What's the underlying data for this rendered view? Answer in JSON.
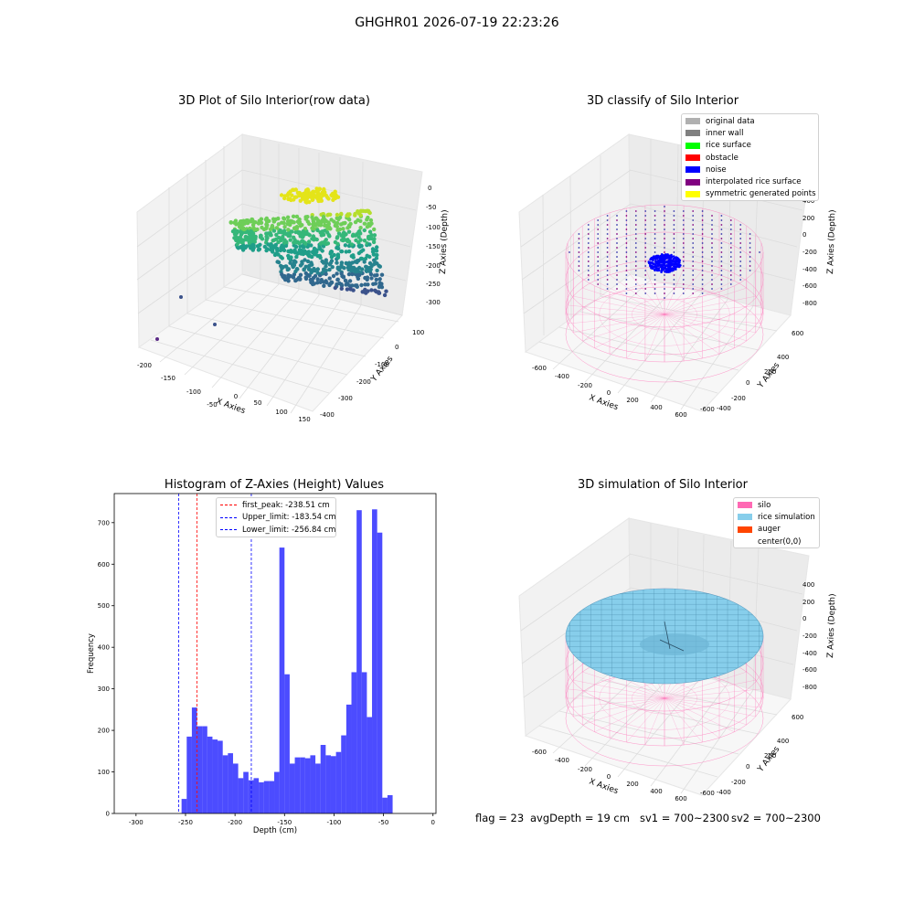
{
  "suptitle": "GHGHR01 2026-07-19 22:23:26",
  "panels": {
    "raw": {
      "title": "3D Plot of Silo Interior(row data)",
      "xlabel": "X Axies",
      "ylabel": "Y Axies",
      "zlabel": "Z Axies (Depth)",
      "xticks": [
        "-200",
        "-150",
        "-100",
        "-50",
        "0",
        "50",
        "100",
        "150"
      ],
      "yticks": [
        "100",
        "0",
        "-100",
        "-200",
        "-300",
        "-400"
      ],
      "zticks": [
        "0",
        "-50",
        "-100",
        "-150",
        "-200",
        "-250",
        "-300"
      ]
    },
    "classify": {
      "title": "3D classify of Silo Interior",
      "xlabel": "X Axies",
      "ylabel": "Y Axies",
      "zlabel": "Z Axies (Depth)",
      "xticks": [
        "-600",
        "-400",
        "-200",
        "0",
        "200",
        "400",
        "600"
      ],
      "yticks": [
        "600",
        "400",
        "200",
        "0",
        "-200",
        "-400",
        "-600"
      ],
      "zticks": [
        "400",
        "200",
        "0",
        "-200",
        "-400",
        "-600",
        "-800"
      ],
      "legend": [
        {
          "label": "original data",
          "color": "#b0b0b0"
        },
        {
          "label": "inner wall",
          "color": "#808080"
        },
        {
          "label": "rice surface",
          "color": "#00ff00"
        },
        {
          "label": "obstacle",
          "color": "#ff0000"
        },
        {
          "label": "noise",
          "color": "#0000ff"
        },
        {
          "label": "interpolated rice surface",
          "color": "#800080"
        },
        {
          "label": "symmetric generated points",
          "color": "#ffff00"
        }
      ]
    },
    "simulation": {
      "title": "3D simulation of Silo Interior",
      "xlabel": "X Axies",
      "ylabel": "Y Axies",
      "zlabel": "Z Axies (Depth)",
      "xticks": [
        "-600",
        "-400",
        "-200",
        "0",
        "200",
        "400",
        "600"
      ],
      "yticks": [
        "600",
        "400",
        "200",
        "0",
        "-200",
        "-400",
        "-600"
      ],
      "zticks": [
        "400",
        "200",
        "0",
        "-200",
        "-400",
        "-600",
        "-800"
      ],
      "legend": [
        {
          "label": "silo",
          "color": "#ff69b4"
        },
        {
          "label": "rice simulation",
          "color": "#87ceeb"
        },
        {
          "label": "auger",
          "color": "#ff4500"
        },
        {
          "label": "center(0,0)",
          "color": ""
        }
      ]
    }
  },
  "chart_data": {
    "type": "bar",
    "title": "Histogram of Z-Axies (Height) Values",
    "xlabel": "Depth (cm)",
    "ylabel": "Frequency",
    "xlim": [
      -322,
      3
    ],
    "ylim": [
      0,
      770
    ],
    "xticks": [
      -300,
      -250,
      -200,
      -150,
      -100,
      -50,
      0
    ],
    "yticks": [
      0,
      100,
      200,
      300,
      400,
      500,
      600,
      700
    ],
    "bin_width": 5.2,
    "bins_start": -254,
    "values": [
      35,
      185,
      255,
      210,
      210,
      185,
      178,
      175,
      140,
      145,
      120,
      85,
      100,
      80,
      85,
      75,
      78,
      78,
      100,
      640,
      335,
      120,
      135,
      135,
      133,
      140,
      120,
      165,
      140,
      138,
      148,
      188,
      262,
      340,
      730,
      340,
      232,
      732,
      676,
      38,
      44
    ],
    "bar_color": "#0000ff",
    "vlines": [
      {
        "name": "first_peak",
        "x": -238.51,
        "label": "first_peak: -238.51 cm",
        "color": "#ff0000"
      },
      {
        "name": "upper_limit",
        "x": -183.54,
        "label": "Upper_limit: -183.54 cm",
        "color": "#0000ff"
      },
      {
        "name": "lower_limit",
        "x": -256.84,
        "label": "Lower_limit: -256.84 cm",
        "color": "#0000ff"
      }
    ],
    "legend_position": "top-center",
    "grid": false
  },
  "footer": {
    "flag": "flag = 23",
    "avg_depth": "avgDepth = 19 cm",
    "sv1": "sv1 = 700~2300",
    "sv2": "sv2 = 700~2300"
  }
}
